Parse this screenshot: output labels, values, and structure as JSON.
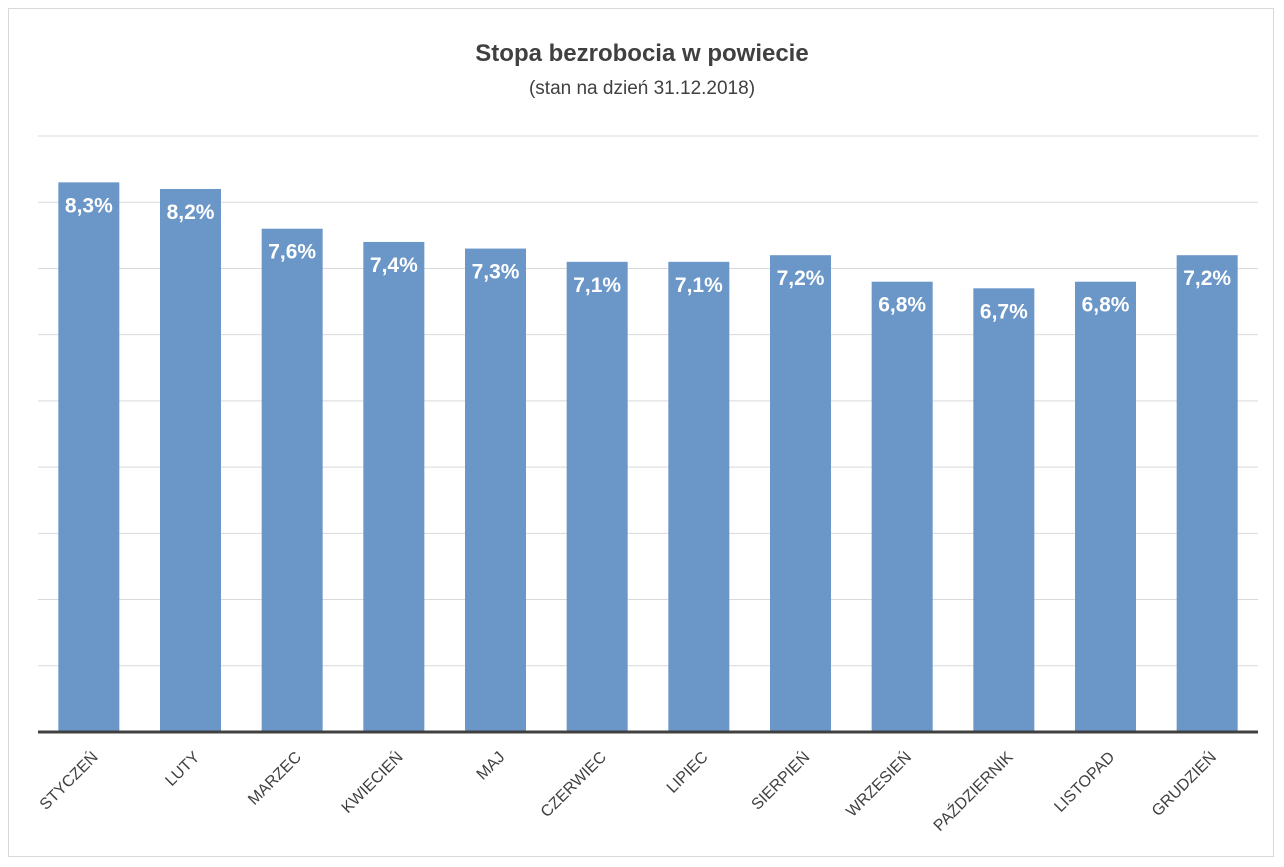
{
  "chart_data": {
    "type": "bar",
    "title": "Stopa bezrobocia w powiecie",
    "subtitle": "(stan na dzień 31.12.2018)",
    "categories": [
      "STYCZEŃ",
      "LUTY",
      "MARZEC",
      "KWIECIEŃ",
      "MAJ",
      "CZERWIEC",
      "LIPIEC",
      "SIERPIEŃ",
      "WRZESIEŃ",
      "PAŹDZIERNIK",
      "LISTOPAD",
      "GRUDZIEŃ"
    ],
    "values": [
      8.3,
      8.2,
      7.6,
      7.4,
      7.3,
      7.1,
      7.1,
      7.2,
      6.8,
      6.7,
      6.8,
      7.2
    ],
    "data_labels": [
      "8,3%",
      "8,2%",
      "7,6%",
      "7,4%",
      "7,3%",
      "7,1%",
      "7,1%",
      "7,2%",
      "6,8%",
      "6,7%",
      "6,8%",
      "7,2%"
    ],
    "xlabel": "",
    "ylabel": "",
    "ylim": [
      0,
      9
    ],
    "grid": true,
    "bar_color": "#6a96c8"
  }
}
